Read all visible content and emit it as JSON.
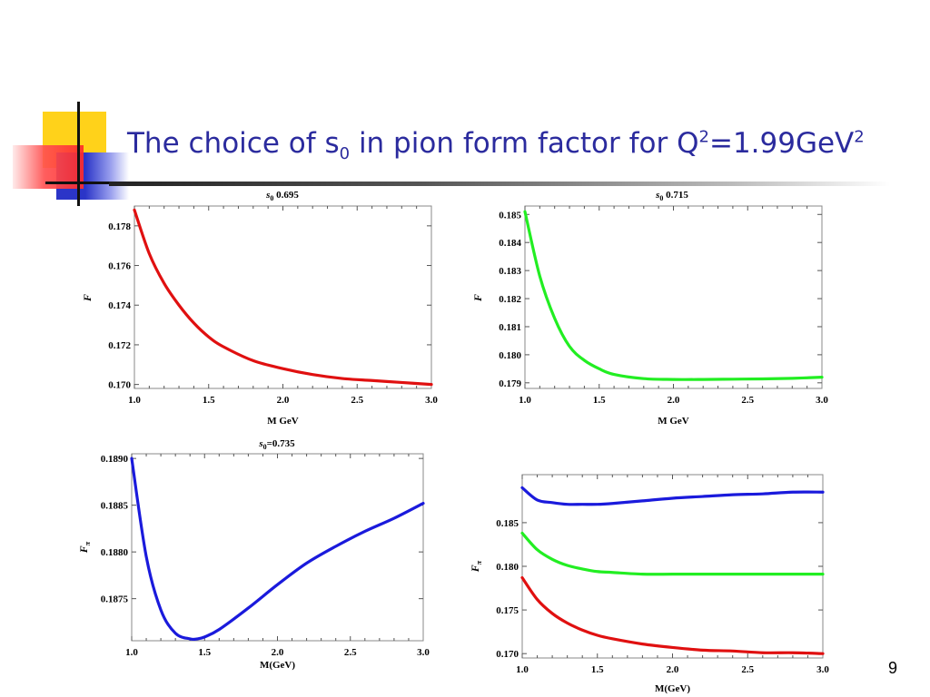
{
  "slide": {
    "title": {
      "main": "The choice of s",
      "sub0": "0",
      "mid": " in pion form factor for Q",
      "sup1": "2",
      "tail": "=1.99GeV",
      "sup2": "2"
    },
    "page_number": "9"
  },
  "colors": {
    "accent_yellow": "#ffd21a",
    "accent_red": "#ff2a2a",
    "accent_blue": "#2b35c8",
    "title_color": "#2b2b9e"
  },
  "chart_data": [
    {
      "type": "line",
      "title_main": "s",
      "title_sub": "0",
      "title_rest": "0.695",
      "xlabel": "M GeV",
      "ylabel": "F",
      "xlim": [
        1.0,
        3.0
      ],
      "ylim": [
        0.1698,
        0.179
      ],
      "xticks": [
        "1.0",
        "1.5",
        "2.0",
        "2.5",
        "3.0"
      ],
      "yticks": [
        "0.170",
        "0.172",
        "0.174",
        "0.176",
        "0.178"
      ],
      "series": [
        {
          "color": "#e01010",
          "x": [
            1.0,
            1.1,
            1.2,
            1.3,
            1.4,
            1.5,
            1.6,
            1.8,
            2.0,
            2.2,
            2.4,
            2.6,
            2.8,
            3.0
          ],
          "y": [
            0.1788,
            0.1766,
            0.1751,
            0.174,
            0.1731,
            0.1724,
            0.1719,
            0.1712,
            0.1708,
            0.1705,
            0.1703,
            0.1702,
            0.1701,
            0.17
          ]
        }
      ]
    },
    {
      "type": "line",
      "title_main": "s",
      "title_sub": "0",
      "title_rest": "0.715",
      "xlabel": "M GeV",
      "ylabel": "F",
      "xlim": [
        1.0,
        3.0
      ],
      "ylim": [
        0.1788,
        0.1853
      ],
      "xticks": [
        "1.0",
        "1.5",
        "2.0",
        "2.5",
        "3.0"
      ],
      "yticks": [
        "0.179",
        "0.180",
        "0.181",
        "0.182",
        "0.183",
        "0.184",
        "0.185"
      ],
      "series": [
        {
          "color": "#22ee22",
          "x": [
            1.0,
            1.1,
            1.2,
            1.3,
            1.4,
            1.5,
            1.6,
            1.8,
            2.0,
            2.2,
            2.4,
            2.6,
            2.8,
            3.0
          ],
          "y": [
            0.1851,
            0.1828,
            0.1813,
            0.1803,
            0.1798,
            0.1795,
            0.1793,
            0.17915,
            0.17912,
            0.17912,
            0.17913,
            0.17914,
            0.17916,
            0.1792
          ]
        }
      ]
    },
    {
      "type": "line",
      "title_main": "s",
      "title_sub": "0",
      "title_rest": "=0.735",
      "xlabel": "M(GeV)",
      "ylabel_main": "F",
      "ylabel_sub": "π",
      "xlim": [
        1.0,
        3.0
      ],
      "ylim": [
        0.18705,
        0.18905
      ],
      "xticks": [
        "1.0",
        "1.5",
        "2.0",
        "2.5",
        "3.0"
      ],
      "yticks": [
        "0.1875",
        "0.1880",
        "0.1885",
        "0.1890"
      ],
      "series": [
        {
          "color": "#1a1adc",
          "x": [
            1.0,
            1.1,
            1.2,
            1.3,
            1.4,
            1.45,
            1.5,
            1.6,
            1.8,
            2.0,
            2.2,
            2.4,
            2.6,
            2.8,
            3.0
          ],
          "y": [
            0.189,
            0.18795,
            0.18738,
            0.18713,
            0.18707,
            0.18707,
            0.18709,
            0.18717,
            0.1874,
            0.18765,
            0.18788,
            0.18806,
            0.18822,
            0.18836,
            0.18852
          ]
        }
      ]
    },
    {
      "type": "line",
      "xlabel": "M(GeV)",
      "ylabel_main": "F",
      "ylabel_sub": "π",
      "xlim": [
        1.0,
        3.0
      ],
      "ylim": [
        0.1695,
        0.1905
      ],
      "xticks": [
        "1.0",
        "1.5",
        "2.0",
        "2.5",
        "3.0"
      ],
      "yticks": [
        "0.170",
        "0.175",
        "0.180",
        "0.185"
      ],
      "series": [
        {
          "color": "#1a1adc",
          "x": [
            1.0,
            1.1,
            1.2,
            1.3,
            1.4,
            1.5,
            1.6,
            1.8,
            2.0,
            2.2,
            2.4,
            2.6,
            2.8,
            3.0
          ],
          "y": [
            0.189,
            0.1876,
            0.1873,
            0.1871,
            0.1871,
            0.1871,
            0.1872,
            0.1875,
            0.1878,
            0.188,
            0.1882,
            0.1883,
            0.1885,
            0.1885
          ]
        },
        {
          "color": "#22ee22",
          "x": [
            1.0,
            1.1,
            1.2,
            1.3,
            1.4,
            1.5,
            1.6,
            1.8,
            2.0,
            2.2,
            2.4,
            2.6,
            2.8,
            3.0
          ],
          "y": [
            0.1838,
            0.1819,
            0.1808,
            0.1801,
            0.1797,
            0.1794,
            0.1793,
            0.1791,
            0.1791,
            0.1791,
            0.1791,
            0.1791,
            0.1791,
            0.1791
          ]
        },
        {
          "color": "#e01010",
          "x": [
            1.0,
            1.1,
            1.2,
            1.3,
            1.4,
            1.5,
            1.6,
            1.8,
            2.0,
            2.2,
            2.4,
            2.6,
            2.8,
            3.0
          ],
          "y": [
            0.1787,
            0.1762,
            0.1746,
            0.1735,
            0.1727,
            0.1721,
            0.1717,
            0.1711,
            0.1707,
            0.1704,
            0.1703,
            0.1701,
            0.1701,
            0.17
          ]
        }
      ]
    }
  ]
}
